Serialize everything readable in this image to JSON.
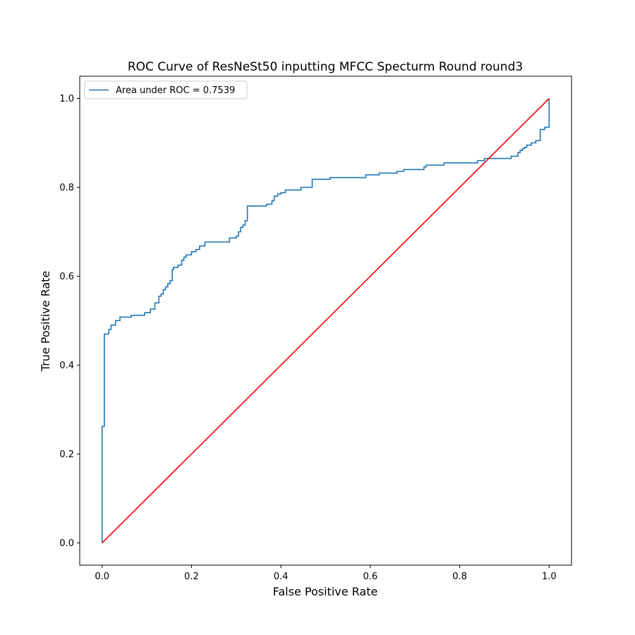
{
  "chart_data": {
    "type": "line",
    "title": "ROC Curve of ResNeSt50 inputting MFCC Specturm Round round3",
    "xlabel": "False Positive Rate",
    "ylabel": "True Positive Rate",
    "xlim": [
      -0.05,
      1.05
    ],
    "ylim": [
      -0.05,
      1.05
    ],
    "xticks": [
      0.0,
      0.2,
      0.4,
      0.6,
      0.8,
      1.0
    ],
    "xtick_labels": [
      "0.0",
      "0.2",
      "0.4",
      "0.6",
      "0.8",
      "1.0"
    ],
    "yticks": [
      0.0,
      0.2,
      0.4,
      0.6,
      0.8,
      1.0
    ],
    "ytick_labels": [
      "0.0",
      "0.2",
      "0.4",
      "0.6",
      "0.8",
      "1.0"
    ],
    "grid": false,
    "legend": {
      "placement": "top-left",
      "entries": [
        "Area under ROC = 0.7539"
      ]
    },
    "series": [
      {
        "name": "Area under ROC = 0.7539",
        "color": "#1f77b4",
        "step": true,
        "x": [
          0.0,
          0.0,
          0.005,
          0.005,
          0.01,
          0.01,
          0.015,
          0.015,
          0.02,
          0.02,
          0.03,
          0.03,
          0.04,
          0.04,
          0.065,
          0.065,
          0.095,
          0.095,
          0.108,
          0.108,
          0.118,
          0.118,
          0.127,
          0.127,
          0.132,
          0.132,
          0.137,
          0.137,
          0.142,
          0.142,
          0.147,
          0.147,
          0.152,
          0.152,
          0.157,
          0.157,
          0.16,
          0.16,
          0.17,
          0.17,
          0.178,
          0.178,
          0.183,
          0.183,
          0.188,
          0.188,
          0.2,
          0.2,
          0.21,
          0.21,
          0.218,
          0.218,
          0.23,
          0.23,
          0.285,
          0.285,
          0.3,
          0.3,
          0.305,
          0.305,
          0.31,
          0.31,
          0.315,
          0.315,
          0.32,
          0.32,
          0.325,
          0.325,
          0.368,
          0.368,
          0.38,
          0.38,
          0.385,
          0.385,
          0.393,
          0.393,
          0.4,
          0.4,
          0.41,
          0.41,
          0.445,
          0.445,
          0.47,
          0.47,
          0.51,
          0.51,
          0.59,
          0.59,
          0.62,
          0.62,
          0.66,
          0.66,
          0.675,
          0.675,
          0.72,
          0.72,
          0.725,
          0.725,
          0.765,
          0.765,
          0.84,
          0.84,
          0.855,
          0.855,
          0.87,
          0.87,
          0.915,
          0.915,
          0.93,
          0.93,
          0.935,
          0.935,
          0.94,
          0.94,
          0.945,
          0.945,
          0.95,
          0.95,
          0.96,
          0.96,
          0.97,
          0.97,
          0.98,
          0.98,
          0.99,
          0.99,
          1.0,
          1.0
        ],
        "y": [
          0.0,
          0.262,
          0.262,
          0.47,
          0.47,
          0.47,
          0.47,
          0.48,
          0.48,
          0.49,
          0.49,
          0.5,
          0.5,
          0.508,
          0.508,
          0.512,
          0.512,
          0.518,
          0.518,
          0.526,
          0.526,
          0.54,
          0.54,
          0.555,
          0.555,
          0.56,
          0.56,
          0.57,
          0.57,
          0.576,
          0.576,
          0.583,
          0.583,
          0.59,
          0.59,
          0.615,
          0.615,
          0.62,
          0.62,
          0.625,
          0.625,
          0.636,
          0.636,
          0.643,
          0.643,
          0.648,
          0.648,
          0.655,
          0.655,
          0.66,
          0.66,
          0.668,
          0.668,
          0.677,
          0.677,
          0.686,
          0.686,
          0.69,
          0.69,
          0.7,
          0.7,
          0.71,
          0.71,
          0.715,
          0.715,
          0.725,
          0.725,
          0.758,
          0.758,
          0.762,
          0.762,
          0.77,
          0.77,
          0.78,
          0.78,
          0.785,
          0.785,
          0.788,
          0.788,
          0.794,
          0.794,
          0.8,
          0.8,
          0.818,
          0.818,
          0.822,
          0.822,
          0.828,
          0.828,
          0.832,
          0.832,
          0.836,
          0.836,
          0.84,
          0.84,
          0.846,
          0.846,
          0.85,
          0.85,
          0.855,
          0.855,
          0.86,
          0.86,
          0.865,
          0.865,
          0.865,
          0.865,
          0.87,
          0.87,
          0.878,
          0.878,
          0.883,
          0.883,
          0.887,
          0.887,
          0.89,
          0.89,
          0.895,
          0.895,
          0.9,
          0.9,
          0.905,
          0.905,
          0.93,
          0.93,
          0.935,
          0.935,
          1.0
        ]
      },
      {
        "name": "",
        "color": "#ff0000",
        "step": false,
        "x": [
          0.0,
          1.0
        ],
        "y": [
          0.0,
          1.0
        ]
      }
    ]
  }
}
